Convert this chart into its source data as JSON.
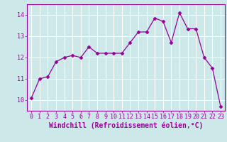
{
  "x": [
    0,
    1,
    2,
    3,
    4,
    5,
    6,
    7,
    8,
    9,
    10,
    11,
    12,
    13,
    14,
    15,
    16,
    17,
    18,
    19,
    20,
    21,
    22,
    23
  ],
  "y": [
    10.1,
    11.0,
    11.1,
    11.8,
    12.0,
    12.1,
    12.0,
    12.5,
    12.2,
    12.2,
    12.2,
    12.2,
    12.7,
    13.2,
    13.2,
    13.85,
    13.7,
    12.7,
    14.1,
    13.35,
    13.35,
    12.0,
    11.5,
    9.7
  ],
  "line_color": "#990099",
  "marker": "D",
  "marker_size": 2.5,
  "bg_color": "#cce8e8",
  "grid_color": "#ffffff",
  "xlabel": "Windchill (Refroidissement éolien,°C)",
  "ylim": [
    9.5,
    14.5
  ],
  "yticks": [
    10,
    11,
    12,
    13,
    14
  ],
  "xticks": [
    0,
    1,
    2,
    3,
    4,
    5,
    6,
    7,
    8,
    9,
    10,
    11,
    12,
    13,
    14,
    15,
    16,
    17,
    18,
    19,
    20,
    21,
    22,
    23
  ],
  "tick_fontsize": 6,
  "xlabel_fontsize": 7
}
